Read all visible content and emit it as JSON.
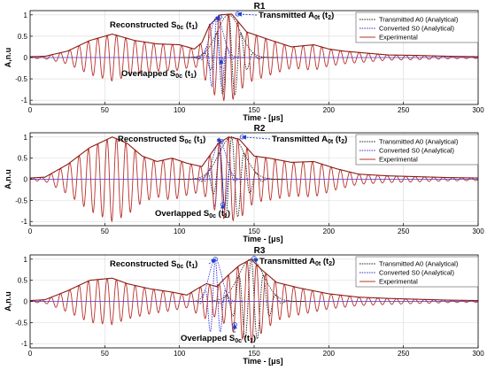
{
  "chart_data": [
    {
      "type": "line",
      "title": "R1",
      "xlabel": "Time - [μs]",
      "ylabel": "A,n.u",
      "xlim": [
        0,
        300
      ],
      "ylim": [
        -1.1,
        1.1
      ],
      "xticks": [
        0,
        50,
        100,
        150,
        200,
        250,
        300
      ],
      "yticks": [
        -1,
        -0.5,
        0,
        0.5,
        1
      ],
      "tick_labels_y": [
        "-1",
        "-0.5",
        "0",
        "0.5",
        "1"
      ],
      "grid": true,
      "legend_position": "top-right",
      "series": [
        {
          "name": "Transmitted A0 (Analytical)",
          "style": "dotted",
          "color": "#1a1a1a",
          "center": 133,
          "peak": 1.0,
          "freq": 0.12,
          "width": 11
        },
        {
          "name": "Converted S0 (Analytical)",
          "style": "dotted",
          "color": "#2b2bd6",
          "center": 125,
          "peak": 0.95,
          "freq": 0.14,
          "width": 6
        },
        {
          "name": "Experimental",
          "style": "solid",
          "color": "#b8302a",
          "env_x": [
            0,
            10,
            25,
            40,
            55,
            70,
            85,
            100,
            110,
            115,
            120,
            127,
            135,
            145,
            160,
            175,
            190,
            200,
            210,
            220,
            240,
            260,
            280,
            300
          ],
          "env_y": [
            0.02,
            0.03,
            0.15,
            0.4,
            0.55,
            0.4,
            0.32,
            0.3,
            0.2,
            0.35,
            0.75,
            1.0,
            1.02,
            0.6,
            0.42,
            0.25,
            0.3,
            0.2,
            0.15,
            0.12,
            0.06,
            0.05,
            0.03,
            0.02
          ],
          "freq": 0.16
        }
      ],
      "annotations": [
        {
          "parts": [
            {
              "t": "Reconstructed S"
            },
            {
              "t": "0c",
              "sub": true
            },
            {
              "t": " (t"
            },
            {
              "t": "1",
              "sub": true
            },
            {
              "t": ")"
            }
          ],
          "target_x": 127,
          "target_y": 0.95
        },
        {
          "parts": [
            {
              "t": "Transmitted A"
            },
            {
              "t": "0t",
              "sub": true
            },
            {
              "t": " (t"
            },
            {
              "t": "2",
              "sub": true
            },
            {
              "t": ")"
            }
          ],
          "target_x": 139,
          "target_y": 1.02
        },
        {
          "parts": [
            {
              "t": "Overlapped S"
            },
            {
              "t": "0c",
              "sub": true
            },
            {
              "t": " (t"
            },
            {
              "t": "1",
              "sub": true
            },
            {
              "t": ")"
            }
          ],
          "target_x": 128,
          "target_y": -0.05
        }
      ]
    },
    {
      "type": "line",
      "title": "R2",
      "xlabel": "Time - [μs]",
      "ylabel": "A,n.u",
      "xlim": [
        0,
        300
      ],
      "ylim": [
        -1.1,
        1.1
      ],
      "xticks": [
        0,
        50,
        100,
        150,
        200,
        250,
        300
      ],
      "yticks": [
        -1,
        -0.5,
        0,
        0.5,
        1
      ],
      "tick_labels_y": [
        "-1",
        "-0.5",
        "0",
        "0.5",
        "1"
      ],
      "grid": true,
      "legend_position": "top-right",
      "series": [
        {
          "name": "Transmitted A0 (Analytical)",
          "style": "dotted",
          "color": "#1a1a1a",
          "center": 135,
          "peak": 1.0,
          "freq": 0.12,
          "width": 12
        },
        {
          "name": "Converted S0 (Analytical)",
          "style": "dotted",
          "color": "#2b2bd6",
          "center": 127,
          "peak": 0.9,
          "freq": 0.14,
          "width": 6
        },
        {
          "name": "Experimental",
          "style": "solid",
          "color": "#b8302a",
          "env_x": [
            0,
            10,
            25,
            40,
            55,
            65,
            75,
            85,
            95,
            105,
            115,
            120,
            126,
            133,
            140,
            150,
            160,
            175,
            190,
            205,
            220,
            240,
            260,
            280,
            300
          ],
          "env_y": [
            0.03,
            0.05,
            0.35,
            0.75,
            1.0,
            0.85,
            0.55,
            0.42,
            0.5,
            0.38,
            0.3,
            0.55,
            0.85,
            1.0,
            0.95,
            0.55,
            0.5,
            0.4,
            0.42,
            0.25,
            0.12,
            0.08,
            0.06,
            0.04,
            0.03
          ],
          "freq": 0.16
        }
      ],
      "annotations": [
        {
          "parts": [
            {
              "t": "Reconstructed S"
            },
            {
              "t": "0c",
              "sub": true
            },
            {
              "t": " (t"
            },
            {
              "t": "1",
              "sub": true
            },
            {
              "t": ")"
            }
          ],
          "target_x": 128,
          "target_y": 0.9
        },
        {
          "parts": [
            {
              "t": "Transmitted A"
            },
            {
              "t": "0t",
              "sub": true
            },
            {
              "t": " (t"
            },
            {
              "t": "2",
              "sub": true
            },
            {
              "t": ")"
            }
          ],
          "target_x": 142,
          "target_y": 1.0
        },
        {
          "parts": [
            {
              "t": "Overlapped S"
            },
            {
              "t": "0c",
              "sub": true
            },
            {
              "t": " (t"
            },
            {
              "t": "1",
              "sub": true
            },
            {
              "t": ")"
            }
          ],
          "target_x": 129,
          "target_y": -0.6
        }
      ]
    },
    {
      "type": "line",
      "title": "R3",
      "xlabel": "Time - [μs]",
      "ylabel": "A,n.u",
      "xlim": [
        0,
        300
      ],
      "ylim": [
        -1.1,
        1.1
      ],
      "xticks": [
        0,
        50,
        100,
        150,
        200,
        250,
        300
      ],
      "yticks": [
        -1,
        -0.5,
        0,
        0.5,
        1
      ],
      "tick_labels_y": [
        "-1",
        "-0.5",
        "0",
        "0.5",
        "1"
      ],
      "grid": true,
      "legend_position": "top-right",
      "series": [
        {
          "name": "Transmitted A0 (Analytical)",
          "style": "dotted",
          "color": "#1a1a1a",
          "center": 148,
          "peak": 1.0,
          "freq": 0.12,
          "width": 12
        },
        {
          "name": "Converted S0 (Analytical)",
          "style": "dotted",
          "color": "#2b2bd6",
          "center": 124,
          "peak": 1.0,
          "freq": 0.14,
          "width": 6
        },
        {
          "name": "Experimental",
          "style": "solid",
          "color": "#b8302a",
          "env_x": [
            0,
            10,
            25,
            40,
            55,
            65,
            80,
            95,
            105,
            112,
            118,
            125,
            132,
            140,
            148,
            155,
            165,
            180,
            200,
            220,
            240,
            260,
            280,
            300
          ],
          "env_y": [
            0.02,
            0.04,
            0.25,
            0.5,
            0.55,
            0.42,
            0.3,
            0.22,
            0.15,
            0.3,
            0.42,
            0.35,
            0.6,
            0.85,
            1.0,
            0.75,
            0.45,
            0.32,
            0.18,
            0.1,
            0.07,
            0.05,
            0.03,
            0.02
          ],
          "freq": 0.16
        }
      ],
      "annotations": [
        {
          "parts": [
            {
              "t": "Reconstructed S"
            },
            {
              "t": "0c",
              "sub": true
            },
            {
              "t": " (t"
            },
            {
              "t": "1",
              "sub": true
            },
            {
              "t": ")"
            }
          ],
          "target_x": 124,
          "target_y": 1.0
        },
        {
          "parts": [
            {
              "t": "Transmitted A"
            },
            {
              "t": "0t",
              "sub": true
            },
            {
              "t": " (t"
            },
            {
              "t": "2",
              "sub": true
            },
            {
              "t": ")"
            }
          ],
          "target_x": 150,
          "target_y": 1.02
        },
        {
          "parts": [
            {
              "t": "Overlapped S"
            },
            {
              "t": "0c",
              "sub": true
            },
            {
              "t": " (t"
            },
            {
              "t": "1",
              "sub": true
            },
            {
              "t": ")"
            }
          ],
          "target_x": 137,
          "target_y": -0.55
        }
      ]
    }
  ]
}
